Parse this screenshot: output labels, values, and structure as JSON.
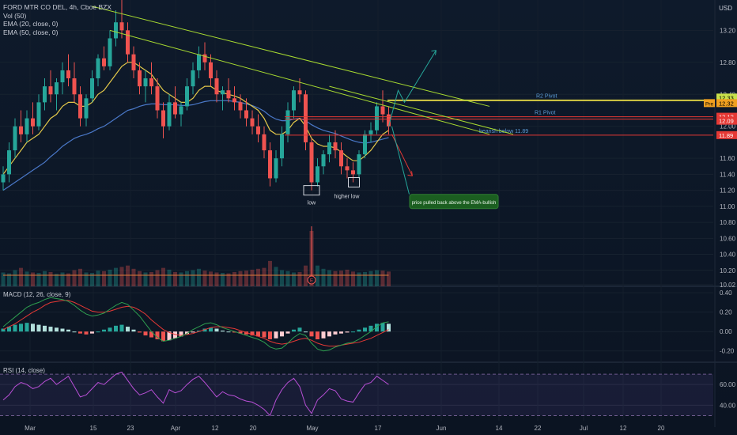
{
  "header": {
    "title": "FORD MTR CO DEL, 4h, Cboe BZX",
    "indicators": [
      "Vol (50)",
      "EMA (20, close, 0)",
      "EMA (50, close, 0)"
    ],
    "currency": "USD"
  },
  "panes": {
    "macd_label": "MACD (12, 26, close, 9)",
    "rsi_label": "RSI (14, close)"
  },
  "colors": {
    "background": "#0c1624",
    "up": "#26a69a",
    "down": "#ef5350",
    "ema20": "#e3c84a",
    "ema50": "#4a78c8",
    "trendline": "#a7d930",
    "pivot_yellow": "#e0d445",
    "pivot_red": "#e53935",
    "rsi": "#b84fd6"
  },
  "chart_data": [
    {
      "type": "candlestick",
      "pane": "price",
      "price_axis": {
        "ticks": [
          13.2,
          12.8,
          12.4,
          12.0,
          11.6,
          11.4,
          11.2,
          11.0,
          10.8,
          10.6,
          10.4,
          10.2,
          10.02
        ],
        "range": [
          10.0,
          13.5
        ]
      },
      "time_axis": {
        "labels": [
          "Mar",
          "15",
          "23",
          "Apr",
          "12",
          "20",
          "May",
          "17",
          "Jun",
          "14",
          "22",
          "Jul",
          "12",
          "20"
        ]
      },
      "candles": [
        [
          11.3,
          11.5,
          11.2,
          11.4
        ],
        [
          11.4,
          11.8,
          11.3,
          11.7
        ],
        [
          11.7,
          12.1,
          11.6,
          12.0
        ],
        [
          12.0,
          12.2,
          11.8,
          11.9
        ],
        [
          11.9,
          12.2,
          11.8,
          12.1
        ],
        [
          12.1,
          12.3,
          11.9,
          12.0
        ],
        [
          12.0,
          12.4,
          11.95,
          12.3
        ],
        [
          12.3,
          12.6,
          12.2,
          12.5
        ],
        [
          12.5,
          12.7,
          12.3,
          12.4
        ],
        [
          12.4,
          12.6,
          12.2,
          12.55
        ],
        [
          12.55,
          12.8,
          12.4,
          12.7
        ],
        [
          12.7,
          12.9,
          12.5,
          12.6
        ],
        [
          12.6,
          12.8,
          12.3,
          12.4
        ],
        [
          12.4,
          12.5,
          12.0,
          12.1
        ],
        [
          12.1,
          12.4,
          12.0,
          12.35
        ],
        [
          12.35,
          12.7,
          12.3,
          12.6
        ],
        [
          12.6,
          12.9,
          12.5,
          12.85
        ],
        [
          12.85,
          13.0,
          12.7,
          12.75
        ],
        [
          12.75,
          13.2,
          12.7,
          13.1
        ],
        [
          13.1,
          13.45,
          13.0,
          13.3
        ],
        [
          13.3,
          13.6,
          13.1,
          13.2
        ],
        [
          13.2,
          13.3,
          12.8,
          12.9
        ],
        [
          12.9,
          13.0,
          12.6,
          12.7
        ],
        [
          12.7,
          12.8,
          12.4,
          12.5
        ],
        [
          12.5,
          12.7,
          12.3,
          12.6
        ],
        [
          12.6,
          12.8,
          12.4,
          12.5
        ],
        [
          12.5,
          12.6,
          12.1,
          12.2
        ],
        [
          12.2,
          12.3,
          11.85,
          12.0
        ],
        [
          12.0,
          12.4,
          11.95,
          12.3
        ],
        [
          12.3,
          12.5,
          12.1,
          12.15
        ],
        [
          12.15,
          12.3,
          12.0,
          12.25
        ],
        [
          12.25,
          12.6,
          12.2,
          12.5
        ],
        [
          12.5,
          12.8,
          12.4,
          12.7
        ],
        [
          12.7,
          13.0,
          12.6,
          12.9
        ],
        [
          12.9,
          13.05,
          12.7,
          12.8
        ],
        [
          12.8,
          12.9,
          12.5,
          12.6
        ],
        [
          12.6,
          12.7,
          12.3,
          12.4
        ],
        [
          12.4,
          12.5,
          12.2,
          12.45
        ],
        [
          12.45,
          12.6,
          12.3,
          12.35
        ],
        [
          12.35,
          12.5,
          12.2,
          12.3
        ],
        [
          12.3,
          12.4,
          12.1,
          12.2
        ],
        [
          12.2,
          12.35,
          12.0,
          12.1
        ],
        [
          12.1,
          12.2,
          11.9,
          12.0
        ],
        [
          12.0,
          12.15,
          11.8,
          11.9
        ],
        [
          11.9,
          12.0,
          11.6,
          11.7
        ],
        [
          11.7,
          11.8,
          11.25,
          11.35
        ],
        [
          11.35,
          11.7,
          11.3,
          11.6
        ],
        [
          11.6,
          12.0,
          11.5,
          11.9
        ],
        [
          11.9,
          12.3,
          11.8,
          12.2
        ],
        [
          12.2,
          12.5,
          12.1,
          12.45
        ],
        [
          12.45,
          12.6,
          12.3,
          12.4
        ],
        [
          12.4,
          12.45,
          11.7,
          11.8
        ],
        [
          11.8,
          11.85,
          11.2,
          11.3
        ],
        [
          11.3,
          11.6,
          11.25,
          11.5
        ],
        [
          11.5,
          11.7,
          11.4,
          11.65
        ],
        [
          11.65,
          11.9,
          11.55,
          11.8
        ],
        [
          11.8,
          11.95,
          11.6,
          11.7
        ],
        [
          11.7,
          11.8,
          11.4,
          11.5
        ],
        [
          11.5,
          11.6,
          11.35,
          11.45
        ],
        [
          11.45,
          11.55,
          11.3,
          11.4
        ],
        [
          11.4,
          11.7,
          11.35,
          11.65
        ],
        [
          11.65,
          11.95,
          11.6,
          11.9
        ],
        [
          11.9,
          12.05,
          11.8,
          11.95
        ],
        [
          11.95,
          12.3,
          11.9,
          12.25
        ],
        [
          12.25,
          12.45,
          12.05,
          12.15
        ],
        [
          12.15,
          12.25,
          11.9,
          12.0
        ]
      ],
      "ema20": [
        11.4,
        11.5,
        11.6,
        11.7,
        11.8,
        11.85,
        11.9,
        12.0,
        12.1,
        12.15,
        12.25,
        12.3,
        12.3,
        12.25,
        12.25,
        12.3,
        12.4,
        12.45,
        12.55,
        12.65,
        12.75,
        12.8,
        12.8,
        12.75,
        12.7,
        12.65,
        12.55,
        12.45,
        12.4,
        12.35,
        12.3,
        12.3,
        12.35,
        12.45,
        12.5,
        12.5,
        12.45,
        12.42,
        12.4,
        12.38,
        12.35,
        12.3,
        12.25,
        12.2,
        12.1,
        11.95,
        11.9,
        11.9,
        11.95,
        12.05,
        12.1,
        12.0,
        11.85,
        11.78,
        11.75,
        11.75,
        11.73,
        11.68,
        11.62,
        11.57,
        11.57,
        11.63,
        11.7,
        11.8,
        11.9,
        11.95
      ],
      "ema50": [
        11.2,
        11.25,
        11.3,
        11.35,
        11.4,
        11.45,
        11.5,
        11.55,
        11.62,
        11.68,
        11.75,
        11.8,
        11.85,
        11.88,
        11.9,
        11.93,
        11.97,
        12.0,
        12.05,
        12.1,
        12.15,
        12.2,
        12.22,
        12.25,
        12.27,
        12.28,
        12.28,
        12.27,
        12.27,
        12.27,
        12.26,
        12.26,
        12.27,
        12.29,
        12.31,
        12.32,
        12.32,
        12.32,
        12.32,
        12.31,
        12.3,
        12.28,
        12.26,
        12.23,
        12.19,
        12.13,
        12.09,
        12.07,
        12.07,
        12.09,
        12.1,
        12.07,
        12.02,
        11.98,
        11.95,
        11.93,
        11.91,
        11.88,
        11.85,
        11.82,
        11.8,
        11.79,
        11.8,
        11.82,
        11.84,
        11.86
      ],
      "trendlines": [
        {
          "from": [
            15,
            13.5
          ],
          "to": [
            74,
            12.25
          ]
        },
        {
          "from": [
            18,
            13.2
          ],
          "to": [
            74,
            11.9
          ]
        },
        {
          "from": [
            55,
            12.5
          ],
          "to": [
            78,
            11.9
          ]
        }
      ],
      "levels": [
        {
          "label": "R2 Pivot",
          "price": 12.33,
          "color": "#e0d445",
          "tag": "12.33",
          "tag_bg": "#c8e04a"
        },
        {
          "label": "",
          "price": 12.32,
          "color": "#e0d445",
          "tag": "12.32",
          "tag_prefix": "Pre",
          "tag_bg": "#f0a020"
        },
        {
          "label": "R1 Pivot",
          "price": 12.12,
          "color": "#e53935",
          "tag": "12.12",
          "tag_bg": "#e53935"
        },
        {
          "label": "",
          "price": 12.09,
          "color": "#e53935",
          "tag": "12.09",
          "tag_bg": "#e53935"
        },
        {
          "label": "bearish below 11.89",
          "price": 11.89,
          "color": "#e53935",
          "tag": "11.89",
          "tag_bg": "#e53935"
        }
      ],
      "annotations": [
        {
          "text": "low",
          "candle": 52,
          "price": 11.2
        },
        {
          "text": "higher low",
          "candle": 59,
          "price": 11.3
        },
        {
          "text": "price pulled back above the EMA-bullish",
          "candle": 78,
          "price": 11.05
        }
      ],
      "earnings_marker": {
        "label": "E",
        "candle": 52
      },
      "volume": [
        30,
        28,
        35,
        40,
        32,
        30,
        29,
        33,
        31,
        27,
        30,
        28,
        35,
        38,
        30,
        29,
        34,
        33,
        36,
        40,
        42,
        45,
        38,
        33,
        30,
        31,
        35,
        40,
        36,
        31,
        30,
        33,
        35,
        38,
        34,
        32,
        30,
        29,
        28,
        31,
        33,
        34,
        36,
        38,
        40,
        55,
        42,
        35,
        33,
        30,
        31,
        45,
        120,
        45,
        38,
        35,
        33,
        34,
        36,
        32,
        30,
        31,
        33,
        35,
        34,
        32
      ]
    },
    {
      "type": "bar",
      "pane": "macd",
      "title": "MACD (12, 26, close, 9)",
      "y_ticks": [
        0.4,
        0.2,
        0.0,
        -0.2
      ],
      "ylim": [
        -0.3,
        0.45
      ],
      "histogram": [
        0.03,
        0.05,
        0.07,
        0.08,
        0.09,
        0.08,
        0.07,
        0.06,
        0.05,
        0.04,
        0.03,
        0.02,
        0.0,
        -0.02,
        -0.03,
        -0.02,
        0.0,
        0.02,
        0.04,
        0.06,
        0.07,
        0.05,
        0.02,
        -0.01,
        -0.04,
        -0.06,
        -0.08,
        -0.1,
        -0.09,
        -0.07,
        -0.05,
        -0.03,
        -0.01,
        0.01,
        0.03,
        0.04,
        0.03,
        0.01,
        0.0,
        -0.01,
        -0.02,
        -0.03,
        -0.04,
        -0.05,
        -0.06,
        -0.08,
        -0.07,
        -0.05,
        -0.02,
        0.02,
        0.04,
        0.0,
        -0.05,
        -0.08,
        -0.07,
        -0.05,
        -0.03,
        -0.02,
        -0.01,
        0.0,
        0.02,
        0.04,
        0.06,
        0.08,
        0.09,
        0.08
      ],
      "macd": [
        0.05,
        0.1,
        0.15,
        0.2,
        0.25,
        0.28,
        0.3,
        0.33,
        0.35,
        0.34,
        0.33,
        0.31,
        0.27,
        0.22,
        0.18,
        0.16,
        0.17,
        0.19,
        0.23,
        0.27,
        0.3,
        0.28,
        0.22,
        0.16,
        0.08,
        0.0,
        -0.06,
        -0.1,
        -0.09,
        -0.07,
        -0.05,
        -0.02,
        0.02,
        0.05,
        0.08,
        0.09,
        0.07,
        0.04,
        0.02,
        0.0,
        -0.02,
        -0.04,
        -0.06,
        -0.08,
        -0.11,
        -0.16,
        -0.18,
        -0.17,
        -0.12,
        -0.06,
        -0.02,
        -0.04,
        -0.12,
        -0.18,
        -0.2,
        -0.19,
        -0.16,
        -0.14,
        -0.12,
        -0.11,
        -0.08,
        -0.04,
        0.0,
        0.05,
        0.09,
        0.1
      ],
      "signal": [
        0.02,
        0.05,
        0.08,
        0.12,
        0.16,
        0.2,
        0.23,
        0.27,
        0.3,
        0.31,
        0.32,
        0.32,
        0.3,
        0.27,
        0.24,
        0.21,
        0.2,
        0.2,
        0.21,
        0.23,
        0.25,
        0.26,
        0.25,
        0.22,
        0.18,
        0.12,
        0.07,
        0.02,
        -0.01,
        -0.03,
        -0.04,
        -0.03,
        -0.02,
        0.0,
        0.02,
        0.04,
        0.05,
        0.05,
        0.04,
        0.03,
        0.01,
        -0.01,
        -0.03,
        -0.05,
        -0.07,
        -0.1,
        -0.12,
        -0.13,
        -0.12,
        -0.1,
        -0.08,
        -0.07,
        -0.09,
        -0.12,
        -0.14,
        -0.15,
        -0.15,
        -0.14,
        -0.13,
        -0.12,
        -0.11,
        -0.09,
        -0.07,
        -0.04,
        -0.01,
        0.02
      ]
    },
    {
      "type": "line",
      "pane": "rsi",
      "title": "RSI (14, close)",
      "y_ticks": [
        60.0,
        40.0
      ],
      "ylim": [
        25,
        80
      ],
      "bands": [
        70,
        30
      ],
      "values": [
        45,
        50,
        58,
        62,
        60,
        56,
        58,
        63,
        66,
        60,
        64,
        68,
        58,
        48,
        50,
        56,
        62,
        60,
        65,
        70,
        72,
        64,
        56,
        50,
        52,
        55,
        48,
        42,
        55,
        52,
        54,
        60,
        65,
        68,
        62,
        55,
        48,
        53,
        50,
        49,
        46,
        44,
        43,
        40,
        36,
        30,
        45,
        55,
        62,
        66,
        58,
        40,
        32,
        45,
        50,
        56,
        54,
        46,
        44,
        43,
        52,
        60,
        62,
        68,
        64,
        60
      ]
    }
  ]
}
